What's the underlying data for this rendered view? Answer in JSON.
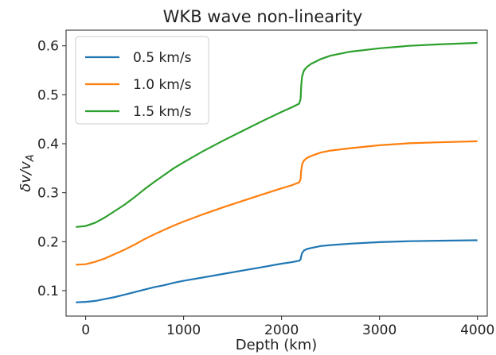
{
  "chart_data": {
    "type": "line",
    "title": "WKB wave non-linearity",
    "xlabel": "Depth (km)",
    "ylabel_main": "δv/v",
    "ylabel_sub": "A",
    "xlim": [
      -200,
      4100
    ],
    "ylim": [
      0.048,
      0.632
    ],
    "xticks": [
      0,
      1000,
      2000,
      3000,
      4000
    ],
    "yticks": [
      0.1,
      0.2,
      0.3,
      0.4,
      0.5,
      0.6
    ],
    "legend_position": "upper-left",
    "series": [
      {
        "name": "0.5 km/s",
        "color": "#1f77b4",
        "x": [
          -100,
          0,
          100,
          200,
          300,
          400,
          500,
          600,
          700,
          800,
          900,
          1000,
          1200,
          1400,
          1600,
          1800,
          2000,
          2100,
          2180,
          2195,
          2200,
          2210,
          2230,
          2260,
          2300,
          2400,
          2500,
          2700,
          3000,
          3300,
          3600,
          4000
        ],
        "y": [
          0.076,
          0.077,
          0.079,
          0.083,
          0.087,
          0.092,
          0.097,
          0.102,
          0.107,
          0.111,
          0.116,
          0.12,
          0.127,
          0.134,
          0.141,
          0.148,
          0.155,
          0.158,
          0.161,
          0.164,
          0.17,
          0.177,
          0.182,
          0.185,
          0.187,
          0.191,
          0.193,
          0.196,
          0.199,
          0.201,
          0.202,
          0.203
        ]
      },
      {
        "name": "1.0 km/s",
        "color": "#ff7f0e",
        "x": [
          -100,
          0,
          100,
          200,
          300,
          400,
          500,
          600,
          700,
          800,
          900,
          1000,
          1200,
          1400,
          1600,
          1800,
          2000,
          2100,
          2180,
          2195,
          2200,
          2210,
          2230,
          2260,
          2300,
          2400,
          2500,
          2700,
          3000,
          3300,
          3600,
          4000
        ],
        "y": [
          0.153,
          0.154,
          0.159,
          0.166,
          0.175,
          0.184,
          0.194,
          0.205,
          0.215,
          0.224,
          0.233,
          0.241,
          0.256,
          0.27,
          0.283,
          0.296,
          0.309,
          0.315,
          0.321,
          0.328,
          0.345,
          0.358,
          0.366,
          0.371,
          0.375,
          0.382,
          0.386,
          0.391,
          0.397,
          0.401,
          0.403,
          0.405
        ]
      },
      {
        "name": "1.5 km/s",
        "color": "#2ca02c",
        "x": [
          -100,
          0,
          100,
          200,
          300,
          400,
          500,
          600,
          700,
          800,
          900,
          1000,
          1200,
          1400,
          1600,
          1800,
          2000,
          2100,
          2180,
          2195,
          2200,
          2210,
          2230,
          2260,
          2300,
          2400,
          2500,
          2700,
          3000,
          3300,
          3600,
          4000
        ],
        "y": [
          0.23,
          0.232,
          0.239,
          0.25,
          0.263,
          0.276,
          0.291,
          0.307,
          0.322,
          0.336,
          0.35,
          0.362,
          0.385,
          0.406,
          0.426,
          0.446,
          0.465,
          0.474,
          0.482,
          0.492,
          0.518,
          0.538,
          0.55,
          0.557,
          0.563,
          0.573,
          0.58,
          0.588,
          0.595,
          0.6,
          0.603,
          0.606
        ]
      }
    ]
  }
}
